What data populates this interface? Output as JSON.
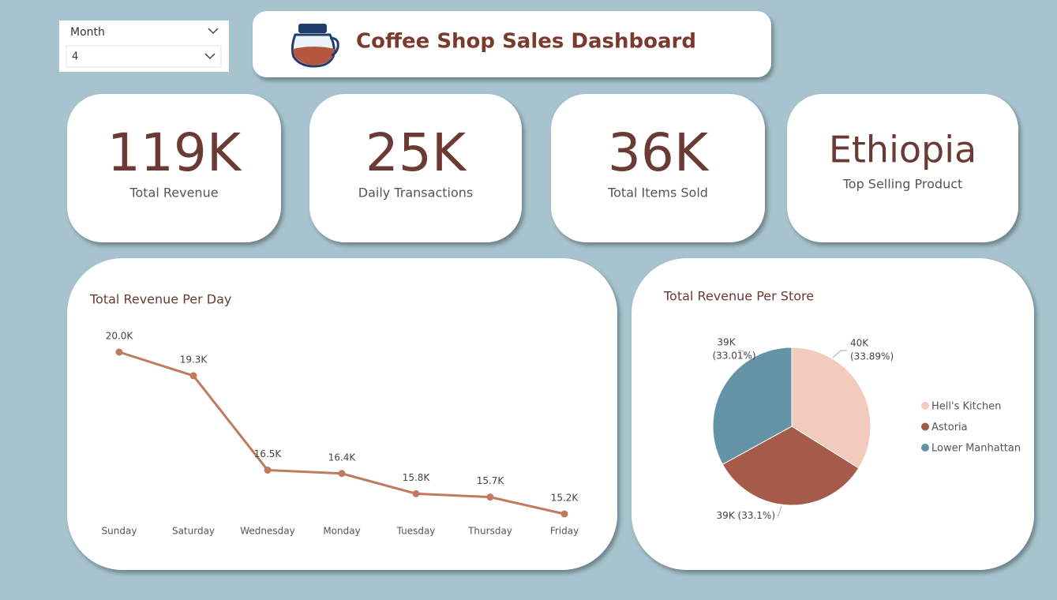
{
  "slicer": {
    "label": "Month",
    "value": "4"
  },
  "header": {
    "title": "Coffee Shop Sales Dashboard"
  },
  "kpis": [
    {
      "value": "119K",
      "label": "Total Revenue"
    },
    {
      "value": "25K",
      "label": "Daily Transactions"
    },
    {
      "value": "36K",
      "label": "Total Items Sold"
    },
    {
      "value": "Ethiopia",
      "label": "Top Selling Product"
    }
  ],
  "chart_data": [
    {
      "type": "line",
      "title": "Total Revenue Per Day",
      "color": "#c07a5e",
      "categories": [
        "Sunday",
        "Saturday",
        "Wednesday",
        "Monday",
        "Tuesday",
        "Thursday",
        "Friday"
      ],
      "values": [
        20000,
        19300,
        16500,
        16400,
        15800,
        15700,
        15200
      ],
      "value_labels": [
        "20.0K",
        "19.3K",
        "16.5K",
        "16.4K",
        "15.8K",
        "15.7K",
        "15.2K"
      ]
    },
    {
      "type": "pie",
      "title": "Total Revenue Per Store",
      "categories": [
        "Hell's Kitchen",
        "Astoria",
        "Lower Manhattan"
      ],
      "colors": [
        "#f2cbbd",
        "#a65a4a",
        "#6492a6"
      ],
      "values": [
        33.89,
        33.1,
        33.01
      ],
      "amount_labels": [
        "40K",
        "39K",
        "39K"
      ],
      "value_labels": [
        "(33.89%)",
        "(33.1%)",
        "(33.01%)"
      ]
    }
  ]
}
